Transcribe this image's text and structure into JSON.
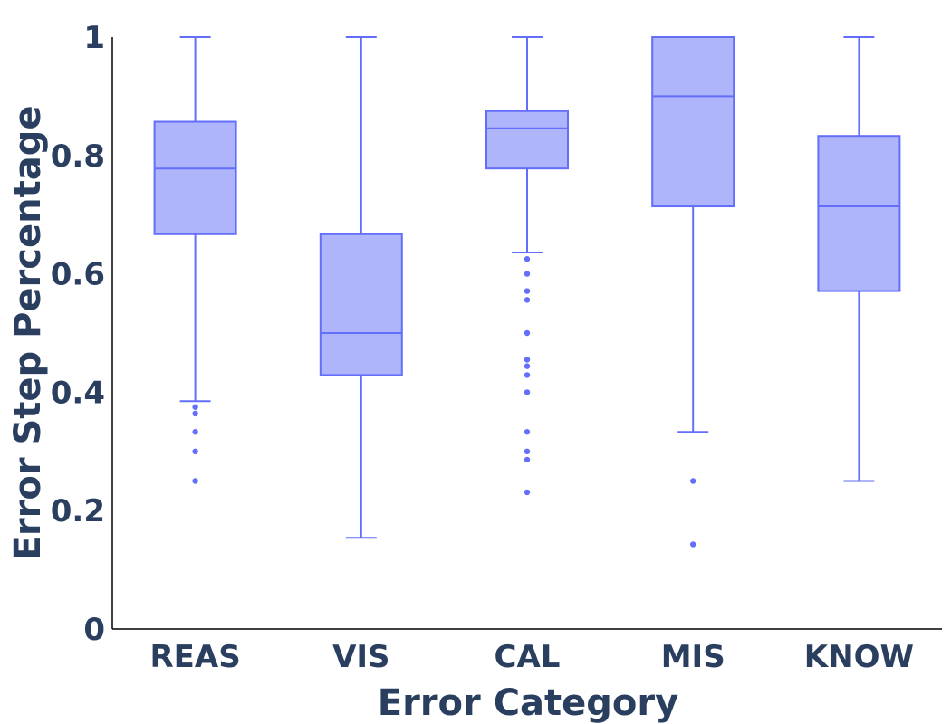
{
  "chart_data": {
    "type": "box",
    "title": "",
    "xlabel": "Error Category",
    "ylabel": "Error Step Percentage",
    "ylim": [
      0,
      1
    ],
    "yticks": [
      0,
      0.2,
      0.4,
      0.6,
      0.8,
      1
    ],
    "ytick_labels": [
      "0",
      "0.2",
      "0.4",
      "0.6",
      "0.8",
      "1"
    ],
    "grid": false,
    "legend": "none",
    "colors": {
      "box_fill": "#aeb5fa",
      "box_line": "#636efa",
      "text": "#2a3f5f",
      "axis": "#000000"
    },
    "categories": [
      "REAS",
      "VIS",
      "CAL",
      "MIS",
      "KNOW"
    ],
    "boxes": [
      {
        "category": "REAS",
        "lower_whisker": 0.385,
        "q1": 0.667,
        "median": 0.778,
        "q3": 0.857,
        "upper_whisker": 1.0,
        "outliers": [
          0.375,
          0.364,
          0.333,
          0.3,
          0.25
        ]
      },
      {
        "category": "VIS",
        "lower_whisker": 0.154,
        "q1": 0.429,
        "median": 0.5,
        "q3": 0.667,
        "upper_whisker": 1.0,
        "outliers": []
      },
      {
        "category": "CAL",
        "lower_whisker": 0.636,
        "q1": 0.778,
        "median": 0.846,
        "q3": 0.875,
        "upper_whisker": 1.0,
        "outliers": [
          0.625,
          0.6,
          0.571,
          0.556,
          0.5,
          0.455,
          0.444,
          0.429,
          0.4,
          0.333,
          0.3,
          0.286,
          0.231
        ]
      },
      {
        "category": "MIS",
        "lower_whisker": 0.333,
        "q1": 0.714,
        "median": 0.9,
        "q3": 1.0,
        "upper_whisker": 1.0,
        "outliers": [
          0.25,
          0.143
        ]
      },
      {
        "category": "KNOW",
        "lower_whisker": 0.25,
        "q1": 0.571,
        "median": 0.714,
        "q3": 0.833,
        "upper_whisker": 1.0,
        "outliers": []
      }
    ]
  }
}
